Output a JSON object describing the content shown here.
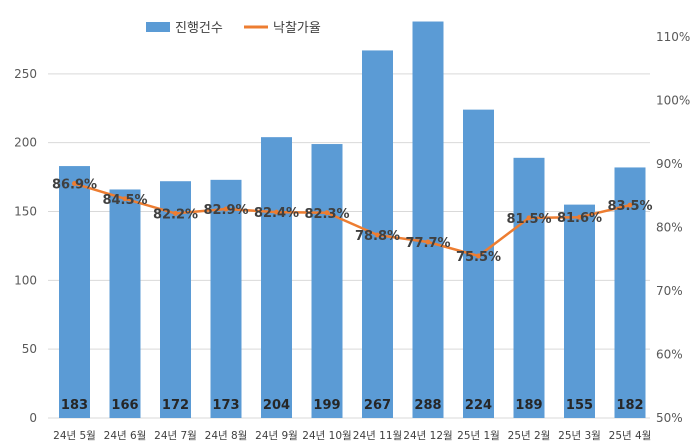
{
  "chart_data": {
    "type": "bar",
    "categories": [
      "24년 5월",
      "24년 6월",
      "24년 7월",
      "24년 8월",
      "24년 9월",
      "24년 10월",
      "24년 11월",
      "24년 12월",
      "25년 1월",
      "25년 2월",
      "25년 3월",
      "25년 4월"
    ],
    "series": [
      {
        "name": "진행건수",
        "type": "bar",
        "axis": "left",
        "color": "#5b9bd5",
        "values": [
          183,
          166,
          172,
          173,
          204,
          199,
          267,
          288,
          224,
          189,
          155,
          182
        ],
        "labels": [
          "183",
          "166",
          "172",
          "173",
          "204",
          "199",
          "267",
          "288",
          "224",
          "189",
          "155",
          "182"
        ]
      },
      {
        "name": "낙찰가율",
        "type": "line",
        "axis": "right",
        "color": "#ed7d31",
        "values": [
          86.9,
          84.5,
          82.2,
          82.9,
          82.4,
          82.3,
          78.8,
          77.7,
          75.5,
          81.5,
          81.6,
          83.5
        ],
        "labels": [
          "86.9%",
          "84.5%",
          "82.2%",
          "82.9%",
          "82.4%",
          "82.3%",
          "78.8%",
          "77.7%",
          "75.5%",
          "81.5%",
          "81.6%",
          "83.5%"
        ]
      }
    ],
    "y_left": {
      "range": [
        0,
        300
      ],
      "ticks": [
        "0",
        "50",
        "100",
        "150",
        "200",
        "250"
      ]
    },
    "y_right": {
      "range": [
        50,
        115
      ],
      "ticks": [
        "50%",
        "60%",
        "70%",
        "80%",
        "90%",
        "100%",
        "110%"
      ]
    },
    "grid": true,
    "legend_position": "top-center",
    "title": ""
  }
}
